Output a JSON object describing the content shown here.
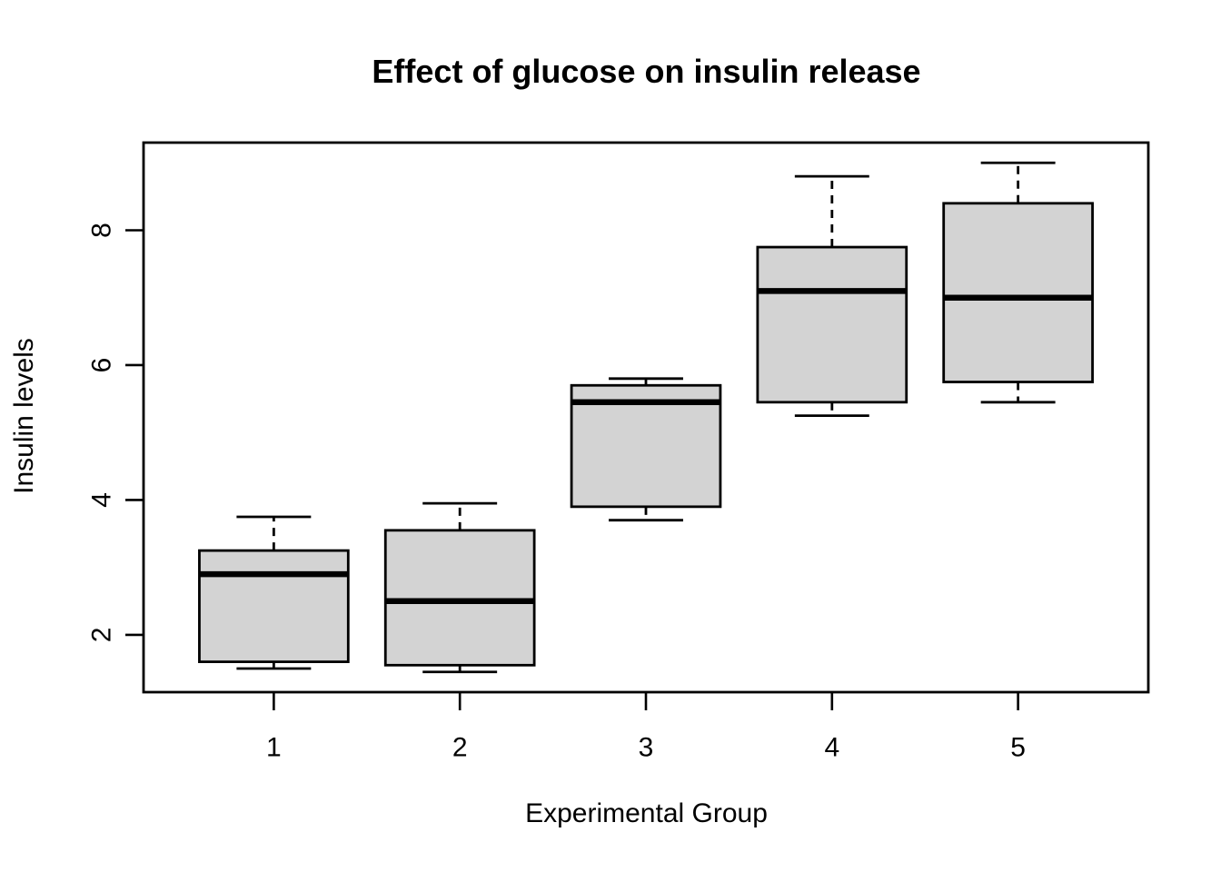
{
  "figure": {
    "background_color": "#ffffff",
    "foreground_color": "#000000"
  },
  "chart_data": {
    "type": "boxplot",
    "title": "Effect of glucose on insulin release",
    "xlabel": "Experimental Group",
    "ylabel": "Insulin levels",
    "categories": [
      "1",
      "2",
      "3",
      "4",
      "5"
    ],
    "y_ticks": [
      2,
      4,
      6,
      8
    ],
    "ylim": [
      1.15,
      9.3
    ],
    "xlim": [
      0.3,
      5.7
    ],
    "grid": "off",
    "legend": "none",
    "box_fill": "#d3d3d3",
    "box_stroke": "#000000",
    "whisker_linetype": "dashed",
    "series": [
      {
        "group": "1",
        "min": 1.5,
        "q1": 1.6,
        "median": 2.9,
        "q3": 3.25,
        "max": 3.75
      },
      {
        "group": "2",
        "min": 1.45,
        "q1": 1.55,
        "median": 2.5,
        "q3": 3.55,
        "max": 3.95
      },
      {
        "group": "3",
        "min": 3.7,
        "q1": 3.9,
        "median": 5.45,
        "q3": 5.7,
        "max": 5.8
      },
      {
        "group": "4",
        "min": 5.25,
        "q1": 5.45,
        "median": 7.1,
        "q3": 7.75,
        "max": 8.8
      },
      {
        "group": "5",
        "min": 5.45,
        "q1": 5.75,
        "median": 7.0,
        "q3": 8.4,
        "max": 9.0
      }
    ]
  }
}
